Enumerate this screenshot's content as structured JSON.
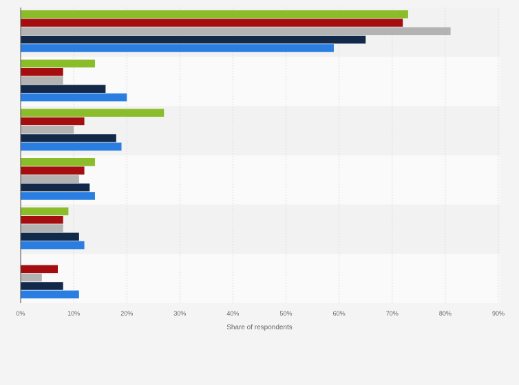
{
  "chart_data": {
    "type": "bar",
    "orientation": "horizontal",
    "title": "",
    "xlabel": "Share of respondents",
    "ylabel": "",
    "xlim": [
      0,
      90
    ],
    "tick_values": [
      0,
      10,
      20,
      30,
      40,
      50,
      60,
      70,
      80,
      90
    ],
    "tick_labels": [
      "0%",
      "10%",
      "20%",
      "30%",
      "40%",
      "50%",
      "60%",
      "70%",
      "80%",
      "90%"
    ],
    "grid": true,
    "legend": "none",
    "groups": 6,
    "series": [
      {
        "color": "#8bbd2a",
        "values": [
          73,
          14,
          27,
          14,
          9,
          0
        ]
      },
      {
        "color": "#a50e11",
        "values": [
          72,
          8,
          12,
          12,
          8,
          7
        ]
      },
      {
        "color": "#b3b3b3",
        "values": [
          81,
          8,
          10,
          11,
          8,
          4
        ]
      },
      {
        "color": "#13294a",
        "values": [
          65,
          16,
          18,
          13,
          11,
          8
        ]
      },
      {
        "color": "#2a7de1",
        "values": [
          59,
          20,
          19,
          14,
          12,
          11
        ]
      }
    ],
    "band_colors": [
      "#f2f2f2",
      "#fafafa"
    ]
  }
}
